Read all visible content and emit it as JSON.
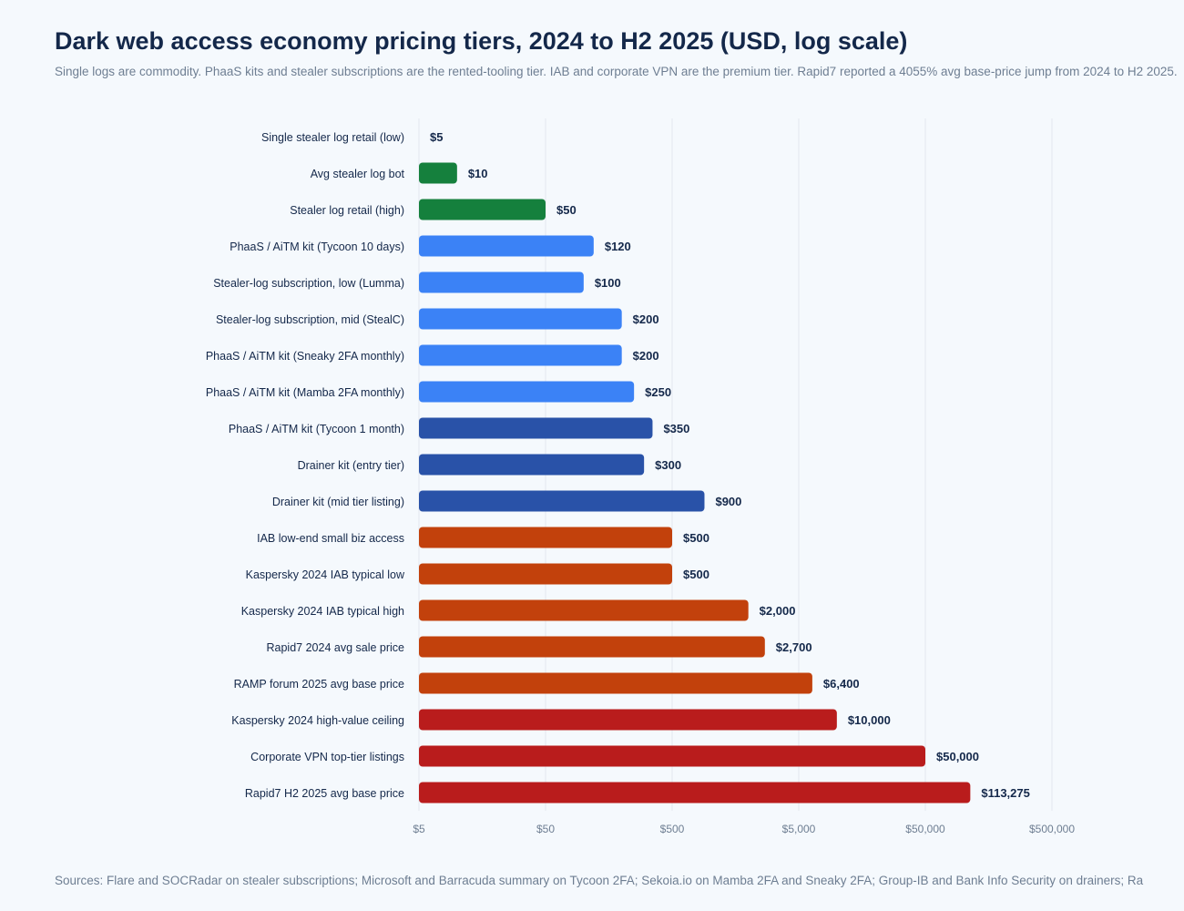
{
  "title": "Dark web access economy pricing tiers, 2024 to H2 2025 (USD, log scale)",
  "subtitle": "Single logs are commodity. PhaaS kits and stealer subscriptions are the rented-tooling tier. IAB and corporate VPN are the premium tier. Rapid7 reported a 4055% avg base-price jump from 2024 to H2 2025.",
  "source": "Sources: Flare and SOCRadar on stealer subscriptions; Microsoft and Barracuda summary on Tycoon 2FA; Sekoia.io on Mamba 2FA and Sneaky 2FA; Group-IB and Bank Info Security on drainers; Ra",
  "colors": {
    "commodity": "#15803d",
    "rented_tooling": "#3b82f6",
    "kits": "#2952a8",
    "iab": "#c2410c",
    "premium": "#b91c1c"
  },
  "chart_data": {
    "type": "bar",
    "orientation": "horizontal",
    "x_scale": "log",
    "xlim": [
      5,
      500000
    ],
    "x_ticks": [
      5,
      50,
      500,
      5000,
      50000,
      500000
    ],
    "x_tick_labels": [
      "$5",
      "$50",
      "$500",
      "$5,000",
      "$50,000",
      "$500,000"
    ],
    "grid": true,
    "categories": [
      "Single stealer log retail (low)",
      "Avg stealer log bot",
      "Stealer log retail (high)",
      "PhaaS / AiTM kit (Tycoon 10 days)",
      "Stealer-log subscription, low (Lumma)",
      "Stealer-log subscription, mid (StealC)",
      "PhaaS / AiTM kit (Sneaky 2FA monthly)",
      "PhaaS / AiTM kit (Mamba 2FA monthly)",
      "PhaaS / AiTM kit (Tycoon 1 month)",
      "Drainer kit (entry tier)",
      "Drainer kit (mid tier listing)",
      "IAB low-end small biz access",
      "Kaspersky 2024 IAB typical low",
      "Kaspersky 2024 IAB typical high",
      "Rapid7 2024 avg sale price",
      "RAMP forum 2025 avg base price",
      "Kaspersky 2024 high-value ceiling",
      "Corporate VPN top-tier listings",
      "Rapid7 H2 2025 avg base price"
    ],
    "values": [
      5,
      10,
      50,
      120,
      100,
      200,
      200,
      250,
      350,
      300,
      900,
      500,
      500,
      2000,
      2700,
      6400,
      10000,
      50000,
      113275
    ],
    "value_labels": [
      "$5",
      "$10",
      "$50",
      "$120",
      "$100",
      "$200",
      "$200",
      "$250",
      "$350",
      "$300",
      "$900",
      "$500",
      "$500",
      "$2,000",
      "$2,700",
      "$6,400",
      "$10,000",
      "$50,000",
      "$113,275"
    ],
    "bar_groups": [
      "commodity",
      "commodity",
      "commodity",
      "rented_tooling",
      "rented_tooling",
      "rented_tooling",
      "rented_tooling",
      "rented_tooling",
      "kits",
      "kits",
      "kits",
      "iab",
      "iab",
      "iab",
      "iab",
      "iab",
      "premium",
      "premium",
      "premium"
    ]
  }
}
